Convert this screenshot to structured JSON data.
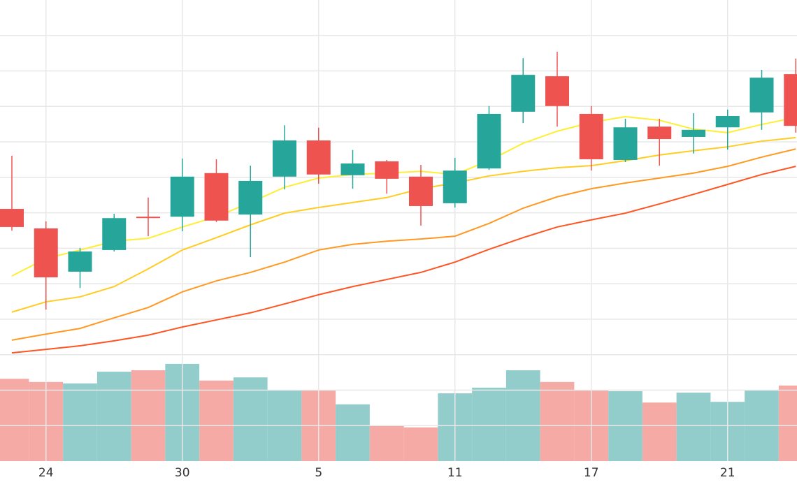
{
  "chart_data": {
    "type": "candlestick",
    "categories": [
      null,
      "24",
      null,
      null,
      null,
      "30",
      null,
      null,
      null,
      "5",
      null,
      null,
      null,
      "11",
      null,
      null,
      null,
      "17",
      null,
      null,
      null,
      "21",
      null,
      null
    ],
    "open": [
      71.1,
      65.6,
      53.4,
      59.5,
      68.9,
      68.9,
      81.2,
      69.5,
      80.2,
      90.4,
      80.6,
      84.5,
      80.2,
      72.7,
      82.5,
      98.5,
      108.5,
      97.9,
      84.9,
      94.3,
      91.4,
      94.1,
      98.3,
      109.1
    ],
    "high": [
      86.1,
      67.6,
      60.1,
      69.7,
      74.3,
      85.3,
      85.1,
      83.3,
      94.7,
      94.0,
      87.7,
      84.9,
      83.5,
      85.5,
      100.1,
      113.6,
      115.4,
      100.1,
      96.5,
      96.5,
      98.1,
      99.1,
      110.3,
      113.5
    ],
    "low": [
      65.0,
      42.7,
      48.8,
      59.1,
      63.4,
      64.8,
      67.4,
      57.5,
      76.6,
      78.2,
      76.8,
      75.4,
      66.4,
      71.5,
      82.1,
      95.3,
      94.3,
      81.9,
      84.3,
      83.3,
      86.7,
      87.8,
      93.4,
      92.6
    ],
    "close": [
      66.0,
      51.8,
      59.1,
      68.5,
      68.5,
      80.2,
      67.8,
      79.0,
      90.4,
      80.8,
      83.9,
      79.6,
      71.9,
      81.9,
      97.9,
      108.9,
      100.1,
      85.1,
      94.1,
      90.8,
      93.4,
      97.3,
      108.1,
      94.5
    ],
    "up_color": "#26a69a",
    "down_color": "#ef5350",
    "ma_lines": [
      {
        "color": "#ffee33",
        "values": [
          52.2,
          57.1,
          59.5,
          62.0,
          62.8,
          66.0,
          68.9,
          72.9,
          77.2,
          79.8,
          80.8,
          81.2,
          81.7,
          80.8,
          84.7,
          89.6,
          93.0,
          95.5,
          97.1,
          96.1,
          93.6,
          92.6,
          94.9,
          96.9
        ]
      },
      {
        "color": "#ffcc22",
        "values": [
          42.0,
          44.9,
          46.3,
          49.2,
          54.2,
          59.5,
          63.0,
          66.6,
          69.9,
          71.5,
          72.9,
          74.3,
          76.8,
          78.4,
          80.4,
          81.7,
          82.7,
          83.3,
          84.7,
          86.3,
          87.5,
          88.6,
          90.2,
          91.2
        ]
      },
      {
        "color": "#ff9922",
        "values": [
          34.1,
          35.8,
          37.4,
          40.4,
          43.3,
          47.7,
          50.8,
          53.2,
          56.1,
          59.5,
          61.1,
          62.0,
          62.6,
          63.4,
          67.0,
          71.3,
          74.5,
          76.8,
          78.4,
          79.8,
          81.2,
          83.1,
          85.7,
          88.0
        ]
      },
      {
        "color": "#ff5522",
        "values": [
          30.5,
          31.5,
          32.5,
          33.9,
          35.5,
          37.8,
          39.8,
          41.8,
          44.3,
          46.9,
          49.2,
          51.2,
          53.2,
          56.1,
          59.7,
          63.0,
          66.0,
          68.0,
          69.9,
          72.5,
          75.2,
          78.0,
          80.8,
          83.1
        ]
      }
    ],
    "volume": {
      "axis": "y2",
      "up_color": "#92cdcc",
      "down_color": "#f5aaa6",
      "values": [
        23.2,
        22.3,
        21.9,
        25.2,
        25.6,
        27.4,
        22.7,
        23.6,
        19.9,
        19.9,
        16.0,
        10.0,
        9.5,
        19.1,
        20.7,
        25.6,
        22.3,
        19.9,
        19.7,
        16.5,
        19.3,
        16.7,
        19.9,
        21.3
      ]
    },
    "ylim": [
      0,
      130
    ],
    "yticks": [
      10,
      20,
      30,
      40,
      50,
      60,
      70,
      80,
      90,
      100,
      110,
      120
    ],
    "y2lim": [
      0,
      130
    ],
    "grid": true
  }
}
